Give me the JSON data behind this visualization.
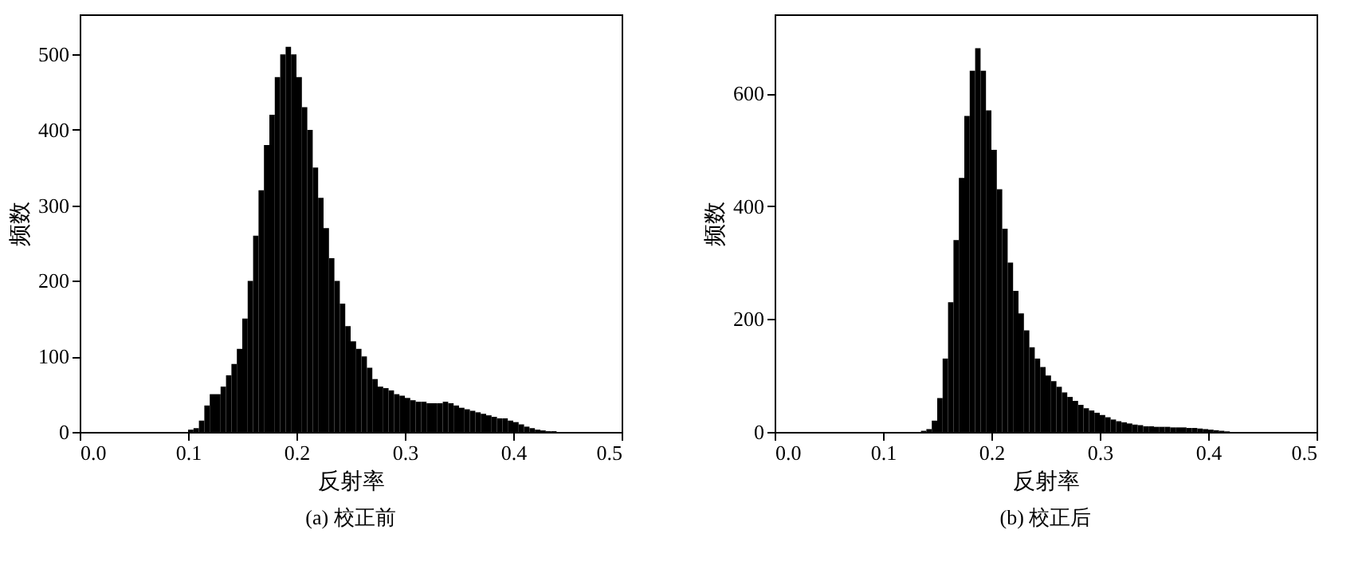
{
  "chart_data": [
    {
      "type": "histogram",
      "title": "(a) 校正前",
      "xlabel": "反射率",
      "ylabel": "频数",
      "color": "#000000",
      "bins": [
        0.1,
        0.105,
        0.11,
        0.115,
        0.12,
        0.125,
        0.13,
        0.135,
        0.14,
        0.145,
        0.15,
        0.155,
        0.16,
        0.165,
        0.17,
        0.175,
        0.18,
        0.185,
        0.19,
        0.195,
        0.2,
        0.205,
        0.21,
        0.215,
        0.22,
        0.225,
        0.23,
        0.235,
        0.24,
        0.245,
        0.25,
        0.255,
        0.26,
        0.265,
        0.27,
        0.275,
        0.28,
        0.285,
        0.29,
        0.295,
        0.3,
        0.305,
        0.31,
        0.315,
        0.32,
        0.325,
        0.33,
        0.335,
        0.34,
        0.345,
        0.35,
        0.355,
        0.36,
        0.365,
        0.37,
        0.375,
        0.38,
        0.385,
        0.39,
        0.395,
        0.4,
        0.405,
        0.41,
        0.415,
        0.42,
        0.425,
        0.43,
        0.435,
        0.44
      ],
      "values": [
        3,
        5,
        15,
        35,
        50,
        50,
        60,
        75,
        90,
        110,
        150,
        200,
        260,
        320,
        380,
        420,
        470,
        500,
        510,
        500,
        470,
        430,
        400,
        350,
        310,
        270,
        230,
        200,
        170,
        140,
        120,
        110,
        100,
        85,
        70,
        60,
        58,
        55,
        50,
        48,
        45,
        42,
        40,
        40,
        38,
        38,
        38,
        40,
        38,
        35,
        32,
        30,
        28,
        26,
        24,
        22,
        20,
        18,
        18,
        15,
        13,
        10,
        7,
        5,
        3,
        2,
        1,
        1
      ],
      "xlim": [
        0,
        0.5
      ],
      "xticks": [
        {
          "value": 0,
          "label": "0.0"
        },
        0.1,
        0.2,
        0.3,
        0.4,
        0.5
      ],
      "ylim": [
        0,
        553
      ],
      "yticks": [
        0,
        100,
        200,
        300,
        400,
        500
      ],
      "grid": false
    },
    {
      "type": "histogram",
      "title": "(b) 校正后",
      "xlabel": "反射率",
      "ylabel": "频数",
      "color": "#000000",
      "bins": [
        0.135,
        0.14,
        0.145,
        0.15,
        0.155,
        0.16,
        0.165,
        0.17,
        0.175,
        0.18,
        0.185,
        0.19,
        0.195,
        0.2,
        0.205,
        0.21,
        0.215,
        0.22,
        0.225,
        0.23,
        0.235,
        0.24,
        0.245,
        0.25,
        0.255,
        0.26,
        0.265,
        0.27,
        0.275,
        0.28,
        0.285,
        0.29,
        0.295,
        0.3,
        0.305,
        0.31,
        0.315,
        0.32,
        0.325,
        0.33,
        0.335,
        0.34,
        0.345,
        0.35,
        0.355,
        0.36,
        0.365,
        0.37,
        0.375,
        0.38,
        0.385,
        0.39,
        0.395,
        0.4,
        0.405,
        0.41,
        0.415,
        0.42
      ],
      "values": [
        2,
        5,
        20,
        60,
        130,
        230,
        340,
        450,
        560,
        640,
        680,
        640,
        570,
        500,
        430,
        360,
        300,
        250,
        210,
        180,
        150,
        130,
        115,
        100,
        90,
        80,
        70,
        62,
        55,
        48,
        42,
        38,
        34,
        30,
        26,
        22,
        19,
        17,
        15,
        13,
        12,
        10,
        10,
        9,
        9,
        9,
        8,
        8,
        8,
        7,
        7,
        6,
        5,
        4,
        3,
        2,
        1
      ],
      "xlim": [
        0,
        0.5
      ],
      "xticks": [
        {
          "value": 0,
          "label": "0.0"
        },
        0.1,
        0.2,
        0.3,
        0.4,
        0.5
      ],
      "ylim": [
        0,
        740
      ],
      "yticks": [
        0,
        200,
        400,
        600
      ],
      "grid": false
    }
  ]
}
